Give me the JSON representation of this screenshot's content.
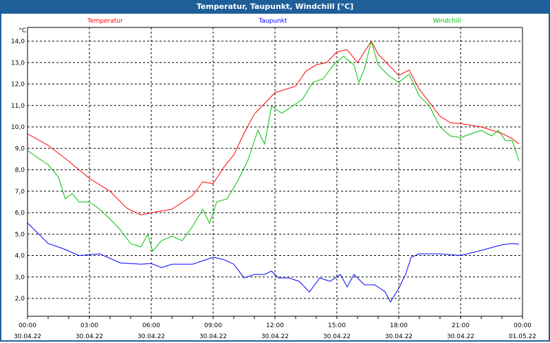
{
  "window": {
    "title": "Temperatur, Taupunkt, Windchill [°C]"
  },
  "chart_data": {
    "type": "line",
    "title": "Temperatur, Taupunkt, Windchill [°C]",
    "ylabel": "°C",
    "ylim": [
      1.17,
      14.64
    ],
    "xlim": [
      0,
      24
    ],
    "grid": true,
    "yticks": [
      2,
      3,
      4,
      5,
      6,
      7,
      8,
      9,
      10,
      11,
      12,
      13,
      14
    ],
    "ytick_labels": [
      "2,0",
      "3,0",
      "4,0",
      "5,0",
      "6,0",
      "7,0",
      "8,0",
      "9,0",
      "10,0",
      "11,0",
      "12,0",
      "13,0",
      "14,0"
    ],
    "xticks": [
      0,
      3,
      6,
      9,
      12,
      15,
      18,
      21,
      24
    ],
    "xtick_labels": [
      {
        "time": "00:00",
        "date": "30.04.22"
      },
      {
        "time": "03:00",
        "date": "30.04.22"
      },
      {
        "time": "06:00",
        "date": "30.04.22"
      },
      {
        "time": "09:00",
        "date": "30.04.22"
      },
      {
        "time": "12:00",
        "date": "30.04.22"
      },
      {
        "time": "15:00",
        "date": "30.04.22"
      },
      {
        "time": "18:00",
        "date": "30.04.22"
      },
      {
        "time": "21:00",
        "date": "30.04.22"
      },
      {
        "time": "00:00",
        "date": "01.05.22"
      }
    ],
    "legend_placement": "top",
    "series": [
      {
        "name": "Temperatur",
        "color": "#ff0000",
        "x": [
          0,
          1,
          2,
          3,
          4,
          4.83,
          5.5,
          6,
          7,
          8,
          8.5,
          9,
          9.5,
          10,
          10.5,
          11,
          11.5,
          12,
          13,
          13.5,
          14,
          14.5,
          15,
          15.5,
          16,
          16.67,
          17,
          17.5,
          18,
          18.5,
          19,
          20,
          20.5,
          21,
          22,
          23,
          23.5,
          23.83
        ],
        "y": [
          9.68,
          9.14,
          8.4,
          7.6,
          7.0,
          6.2,
          5.9,
          6.0,
          6.16,
          6.8,
          7.44,
          7.35,
          8.1,
          8.7,
          9.7,
          10.6,
          11.1,
          11.6,
          11.9,
          12.6,
          12.9,
          13.0,
          13.5,
          13.6,
          13.0,
          14.0,
          13.4,
          12.9,
          12.4,
          12.65,
          11.75,
          10.5,
          10.2,
          10.15,
          10.0,
          9.7,
          9.45,
          9.2
        ]
      },
      {
        "name": "Taupunkt",
        "color": "#0000ff",
        "x": [
          0,
          0.5,
          1,
          1.67,
          2.5,
          3.5,
          4.5,
          5.5,
          6,
          6.5,
          7,
          7.5,
          8,
          8.5,
          9,
          9.5,
          10,
          10.5,
          11,
          11.5,
          11.83,
          12.17,
          12.67,
          13.17,
          13.67,
          14.17,
          14.67,
          15.17,
          15.5,
          15.83,
          16.33,
          16.83,
          17.33,
          17.6,
          18,
          18.33,
          18.6,
          19,
          20,
          21,
          22,
          23,
          23.5,
          23.83
        ],
        "y": [
          5.52,
          5.04,
          4.56,
          4.34,
          4.0,
          4.08,
          3.66,
          3.6,
          3.63,
          3.44,
          3.6,
          3.6,
          3.6,
          3.76,
          3.92,
          3.82,
          3.6,
          2.96,
          3.12,
          3.12,
          3.28,
          2.96,
          2.96,
          2.8,
          2.3,
          2.96,
          2.8,
          3.12,
          2.54,
          3.12,
          2.64,
          2.64,
          2.32,
          1.84,
          2.48,
          3.12,
          3.92,
          4.08,
          4.08,
          4.0,
          4.24,
          4.5,
          4.56,
          4.53
        ]
      },
      {
        "name": "Windchill",
        "color": "#00c000",
        "x": [
          0,
          0.5,
          1,
          1.5,
          1.83,
          2.17,
          2.5,
          3,
          3.5,
          4,
          4.5,
          5,
          5.5,
          5.83,
          6.07,
          6.5,
          7,
          7.5,
          8,
          8.5,
          8.83,
          9.17,
          9.67,
          10.17,
          10.67,
          11.17,
          11.5,
          11.83,
          12.33,
          12.83,
          13.33,
          13.83,
          14.33,
          14.83,
          15.33,
          15.83,
          16.07,
          16.33,
          16.67,
          17,
          17.5,
          18,
          18.5,
          19,
          19.5,
          20,
          20.5,
          21,
          21.5,
          22,
          22.5,
          22.83,
          23.17,
          23.5,
          23.83
        ],
        "y": [
          8.9,
          8.56,
          8.24,
          7.66,
          6.64,
          6.9,
          6.5,
          6.5,
          6.16,
          5.7,
          5.2,
          4.56,
          4.4,
          5.0,
          4.2,
          4.7,
          4.9,
          4.7,
          5.36,
          6.16,
          5.5,
          6.5,
          6.64,
          7.44,
          8.4,
          9.84,
          9.2,
          10.96,
          10.64,
          10.96,
          11.28,
          12.08,
          12.24,
          12.88,
          13.3,
          12.88,
          12.08,
          12.7,
          14.0,
          12.9,
          12.4,
          12.08,
          12.46,
          11.44,
          10.96,
          10.0,
          9.58,
          9.5,
          9.68,
          9.84,
          9.58,
          9.84,
          9.36,
          9.36,
          8.4
        ]
      }
    ]
  }
}
